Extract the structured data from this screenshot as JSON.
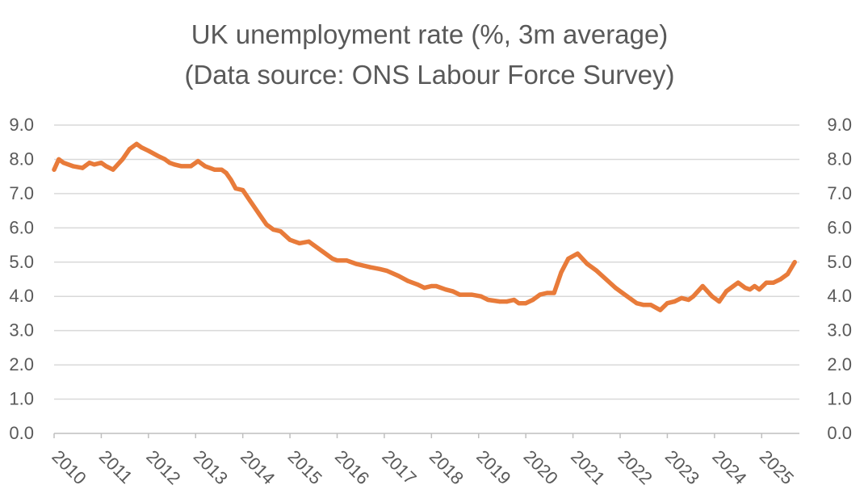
{
  "chart_data": {
    "type": "line",
    "title": "UK unemployment rate (%, 3m average)",
    "subtitle": "(Data source: ONS Labour Force Survey)",
    "xlabel": "",
    "ylabel": "",
    "ylim": [
      0,
      9
    ],
    "xlim": [
      2010.0,
      2025.8
    ],
    "y_ticks": [
      "0.0",
      "1.0",
      "2.0",
      "3.0",
      "4.0",
      "5.0",
      "6.0",
      "7.0",
      "8.0",
      "9.0"
    ],
    "x_ticks": [
      "2010",
      "2011",
      "2012",
      "2013",
      "2014",
      "2015",
      "2016",
      "2017",
      "2018",
      "2019",
      "2020",
      "2021",
      "2022",
      "2023",
      "2024",
      "2025"
    ],
    "secondary_y_axis": true,
    "grid": true,
    "legend": "none",
    "color": "#e87b3a",
    "series": [
      {
        "x": [
          2010.0,
          2010.1,
          2010.2,
          2010.4,
          2010.6,
          2010.75,
          2010.85,
          2011.0,
          2011.1,
          2011.25,
          2011.45,
          2011.6,
          2011.75,
          2011.85,
          2012.0,
          2012.2,
          2012.35,
          2012.45,
          2012.55,
          2012.7,
          2012.9,
          2013.05,
          2013.1,
          2013.2,
          2013.4,
          2013.55,
          2013.65,
          2013.75,
          2013.85,
          2014.0,
          2014.15,
          2014.35,
          2014.5,
          2014.65,
          2014.8,
          2015.0,
          2015.1,
          2015.2,
          2015.4,
          2015.5,
          2015.7,
          2015.9,
          2016.0,
          2016.2,
          2016.4,
          2016.55,
          2016.7,
          2016.9,
          2017.05,
          2017.3,
          2017.5,
          2017.7,
          2017.85,
          2018.0,
          2018.1,
          2018.3,
          2018.45,
          2018.6,
          2018.85,
          2019.05,
          2019.2,
          2019.45,
          2019.6,
          2019.75,
          2019.85,
          2020.0,
          2020.15,
          2020.3,
          2020.45,
          2020.6,
          2020.75,
          2020.9,
          2021.1,
          2021.3,
          2021.5,
          2021.7,
          2021.9,
          2022.05,
          2022.15,
          2022.35,
          2022.5,
          2022.65,
          2022.85,
          2023.0,
          2023.15,
          2023.3,
          2023.45,
          2023.55,
          2023.75,
          2023.95,
          2024.1,
          2024.25,
          2024.4,
          2024.5,
          2024.65,
          2024.75,
          2024.85,
          2024.95,
          2025.1,
          2025.25,
          2025.4,
          2025.55,
          2025.7
        ],
        "y": [
          7.7,
          8.0,
          7.9,
          7.8,
          7.75,
          7.9,
          7.85,
          7.9,
          7.8,
          7.7,
          8.0,
          8.3,
          8.45,
          8.35,
          8.25,
          8.1,
          8.0,
          7.9,
          7.85,
          7.8,
          7.8,
          7.95,
          7.9,
          7.8,
          7.7,
          7.7,
          7.6,
          7.4,
          7.15,
          7.1,
          6.8,
          6.4,
          6.1,
          5.95,
          5.9,
          5.65,
          5.6,
          5.55,
          5.6,
          5.5,
          5.3,
          5.1,
          5.05,
          5.05,
          4.95,
          4.9,
          4.85,
          4.8,
          4.75,
          4.6,
          4.45,
          4.35,
          4.25,
          4.3,
          4.3,
          4.2,
          4.15,
          4.05,
          4.05,
          4.0,
          3.9,
          3.85,
          3.85,
          3.9,
          3.8,
          3.8,
          3.9,
          4.05,
          4.1,
          4.1,
          4.7,
          5.1,
          5.25,
          4.95,
          4.75,
          4.5,
          4.25,
          4.1,
          4.0,
          3.8,
          3.75,
          3.75,
          3.6,
          3.8,
          3.85,
          3.95,
          3.9,
          4.0,
          4.3,
          4.0,
          3.85,
          4.15,
          4.3,
          4.4,
          4.25,
          4.2,
          4.3,
          4.2,
          4.4,
          4.4,
          4.5,
          4.65,
          5.0
        ]
      }
    ]
  }
}
